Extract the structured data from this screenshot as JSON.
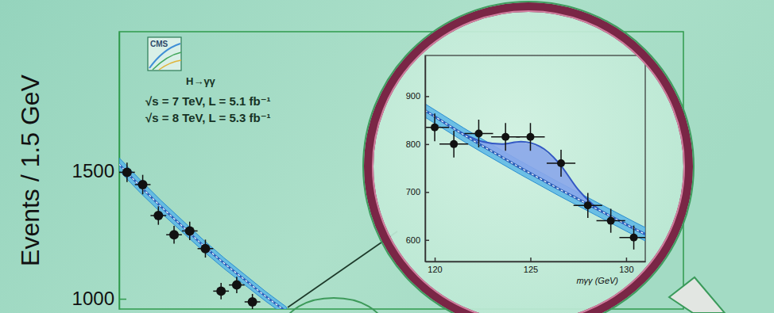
{
  "chart_data": [
    {
      "type": "scatter",
      "logo": "CMS",
      "title": "H→γγ",
      "annotations": [
        "√s = 7 TeV, L = 5.1 fb⁻¹",
        "√s = 8 TeV, L = 5.3 fb⁻¹"
      ],
      "ylabel": "Events / 1.5 GeV",
      "x": [
        100.75,
        102.25,
        103.75,
        105.25,
        106.75,
        108.25,
        109.75,
        111.25,
        112.75
      ],
      "values": [
        1494,
        1446,
        1325,
        1250,
        1265,
        1196,
        1030,
        1054,
        988
      ],
      "errors": [
        38,
        38,
        36,
        35,
        36,
        35,
        32,
        32,
        31
      ],
      "x_errors": [
        0.75,
        0.75,
        0.75,
        0.75,
        0.75,
        0.75,
        0.75,
        0.75,
        0.75
      ],
      "fit": {
        "x": [
          100,
          102,
          104,
          106,
          108,
          110,
          112,
          114,
          116
        ],
        "values": [
          1525,
          1440,
          1360,
          1285,
          1210,
          1140,
          1075,
          1010,
          950
        ],
        "band_low": [
          1500,
          1415,
          1336,
          1262,
          1188,
          1119,
          1055,
          991,
          932
        ],
        "band_high": [
          1550,
          1465,
          1384,
          1308,
          1232,
          1161,
          1095,
          1029,
          968
        ]
      },
      "xlim": [
        100,
        154
      ],
      "ylim": [
        960,
        2043
      ],
      "yticks": [
        1000,
        1500
      ],
      "tick_labels": "y",
      "marker": "circle",
      "color": "#111111"
    },
    {
      "type": "scatter",
      "xlabel": "mγγ (GeV)",
      "x": [
        120.0,
        121.0,
        122.3,
        123.7,
        125.0,
        126.6,
        128.0,
        129.2,
        130.4
      ],
      "values": [
        835,
        800,
        822,
        815,
        815,
        760,
        672,
        640,
        605
      ],
      "errors": [
        29,
        28,
        29,
        29,
        29,
        28,
        26,
        25,
        25
      ],
      "x_errors": [
        0.75,
        0.75,
        0.75,
        0.75,
        0.75,
        0.75,
        0.75,
        0.75,
        0.75
      ],
      "fit": {
        "x": [
          119.5,
          120.5,
          121.5,
          122.5,
          123.5,
          124.5,
          125.5,
          126.5,
          127.5,
          128.5,
          129.5,
          130.5,
          131
        ],
        "values": [
          870,
          845,
          820,
          796,
          773,
          750,
          728,
          706,
          685,
          664,
          643,
          622,
          612
        ],
        "band_low": [
          856,
          831,
          806,
          782,
          759,
          736,
          714,
          692,
          671,
          650,
          629,
          608,
          598
        ],
        "band_high": [
          884,
          859,
          834,
          810,
          787,
          764,
          742,
          720,
          699,
          678,
          657,
          636,
          626
        ],
        "signal_plus_background": [
          870,
          845,
          822,
          805,
          800,
          805,
          795,
          760,
          705,
          666,
          643,
          622,
          612
        ]
      },
      "xlim": [
        119.5,
        131
      ],
      "ylim": [
        555,
        985
      ],
      "xticks": [
        120,
        125,
        130
      ],
      "yticks": [
        600,
        700,
        800,
        900
      ],
      "marker": "circle",
      "color": "#111111"
    }
  ]
}
